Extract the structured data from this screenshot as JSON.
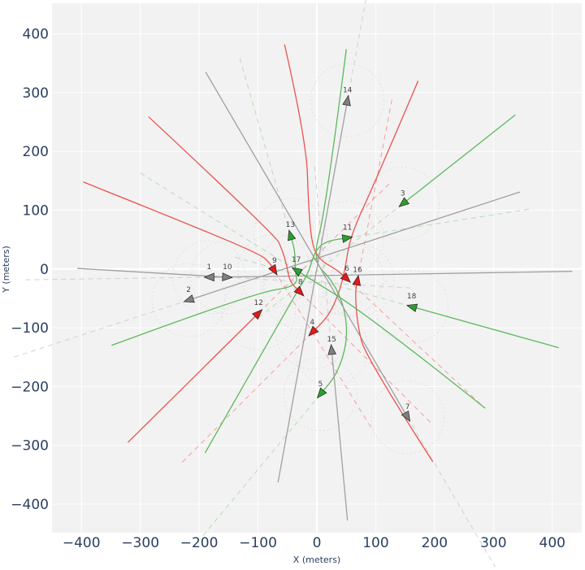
{
  "chart_data": {
    "type": "line",
    "title": "",
    "xlabel": "X (meters)",
    "ylabel": "Y (meters)",
    "xlim": [
      -450,
      450
    ],
    "ylim": [
      -483,
      452
    ],
    "xticks": [
      -400,
      -300,
      -200,
      -100,
      0,
      100,
      200,
      300,
      400
    ],
    "yticks": [
      400,
      300,
      200,
      100,
      0,
      -100,
      -200,
      -300,
      -400
    ],
    "grid": true,
    "legend": "none",
    "colors": {
      "gray": "#a0a0a0",
      "green": "#5cb85c",
      "red": "#e8534f",
      "gray_fill": "#808080",
      "green_fill": "#2ca02c",
      "red_fill": "#e41a1c",
      "background": "#f2f2f2"
    },
    "agents": [
      {
        "id": "1",
        "color": "gray",
        "path": [
          [
            434,
            -4
          ],
          [
            100,
            -10
          ],
          [
            -183,
            -14
          ]
        ]
      },
      {
        "id": "2",
        "color": "gray",
        "path": [
          [
            345,
            131
          ],
          [
            -218,
            -53
          ]
        ]
      },
      {
        "id": "3",
        "color": "green",
        "path": [
          [
            337,
            262
          ],
          [
            146,
            111
          ]
        ]
      },
      {
        "id": "4",
        "color": "red",
        "path": [
          [
            172,
            320
          ],
          [
            100,
            150
          ],
          [
            57,
            57
          ],
          [
            48,
            0
          ],
          [
            38,
            -40
          ],
          [
            20,
            -80
          ],
          [
            -8,
            -108
          ]
        ]
      },
      {
        "id": "5",
        "color": "green",
        "path": [
          [
            50,
            374
          ],
          [
            15,
            100
          ],
          [
            -8,
            15
          ],
          [
            27,
            -20
          ],
          [
            48,
            -68
          ],
          [
            52,
            -123
          ],
          [
            35,
            -178
          ],
          [
            6,
            -213
          ]
        ]
      },
      {
        "id": "6",
        "color": "red",
        "path": [
          [
            -55,
            382
          ],
          [
            -18,
            220
          ],
          [
            -14,
            100
          ],
          [
            -8,
            40
          ],
          [
            5,
            15
          ],
          [
            35,
            -2
          ],
          [
            51,
            -17
          ]
        ]
      },
      {
        "id": "7",
        "color": "gray",
        "path": [
          [
            -189,
            335
          ],
          [
            154,
            -252
          ]
        ]
      },
      {
        "id": "8",
        "color": "red",
        "path": [
          [
            -286,
            259
          ],
          [
            -70,
            57
          ],
          [
            -59,
            33
          ],
          [
            -51,
            6
          ],
          [
            -46,
            -22
          ],
          [
            -28,
            -40
          ]
        ]
      },
      {
        "id": "9",
        "color": "red",
        "path": [
          [
            -397,
            148
          ],
          [
            -262,
            94
          ],
          [
            -97,
            26
          ],
          [
            -80,
            10
          ],
          [
            -72,
            -3
          ]
        ]
      },
      {
        "id": "10",
        "color": "gray",
        "path": [
          [
            -407,
            1
          ],
          [
            -152,
            -14
          ]
        ]
      },
      {
        "id": "11",
        "color": "green",
        "path": [
          [
            -190,
            -313
          ],
          [
            -106,
            -165
          ],
          [
            -32,
            -36
          ],
          [
            -14,
            -6
          ],
          [
            -4,
            29
          ],
          [
            14,
            47
          ],
          [
            52,
            53
          ]
        ]
      },
      {
        "id": "12",
        "color": "red",
        "path": [
          [
            -321,
            -295
          ],
          [
            -99,
            -75
          ]
        ]
      },
      {
        "id": "13",
        "color": "green",
        "path": [
          [
            -349,
            -130
          ],
          [
            -105,
            -40
          ],
          [
            -32,
            -30
          ],
          [
            -37,
            -2
          ],
          [
            -37,
            30
          ],
          [
            -45,
            58
          ]
        ]
      },
      {
        "id": "14",
        "color": "gray",
        "path": [
          [
            -66,
            -363
          ],
          [
            52,
            287
          ]
        ]
      },
      {
        "id": "15",
        "color": "gray",
        "path": [
          [
            52,
            -428
          ],
          [
            25,
            -137
          ]
        ]
      },
      {
        "id": "16",
        "color": "red",
        "path": [
          [
            197,
            -328
          ],
          [
            83,
            -150
          ],
          [
            69,
            -96
          ],
          [
            65,
            -40
          ],
          [
            69,
            -19
          ]
        ]
      },
      {
        "id": "17",
        "color": "green",
        "path": [
          [
            286,
            -237
          ],
          [
            90,
            -80
          ],
          [
            -35,
            -2
          ]
        ]
      },
      {
        "id": "18",
        "color": "green",
        "path": [
          [
            411,
            -134
          ],
          [
            161,
            -64
          ]
        ]
      }
    ]
  }
}
